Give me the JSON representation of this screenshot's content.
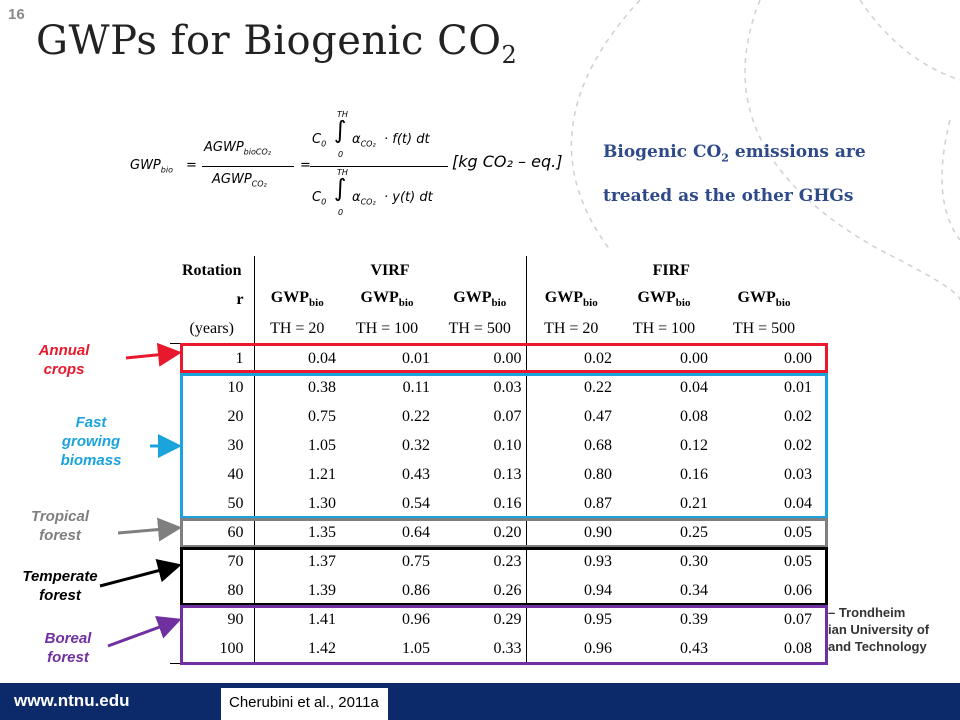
{
  "slide": {
    "number": "16",
    "title_main": "GWPs for Biogenic CO",
    "title_sub": "2"
  },
  "formula": {
    "lhs": "GWP",
    "lhs_sub": "bio",
    "equals": "=",
    "frac1_num": "AGWP",
    "frac1_num_sub": "bioCO₂",
    "frac1_den": "AGWP",
    "frac1_den_sub": "CO₂",
    "int_upper": "TH",
    "int_lower": "0",
    "frac2_num": "C₀ · ∫ α_CO₂ · f(t) dt",
    "frac2_num_c": "C",
    "frac2_num_c_sub": "0",
    "frac2_num_alpha": "α",
    "frac2_num_alpha_sub": "CO₂",
    "frac2_num_func": "· f(t) dt",
    "frac2_den_func": "· y(t) dt",
    "unit": "[kg CO₂ – eq.]"
  },
  "note": {
    "line1_main": "Biogenic CO",
    "line1_sub": "2",
    "line1_rest": " emissions are",
    "line2": "treated as the other GHGs"
  },
  "table": {
    "group_headers": {
      "rotation": "Rotation",
      "virf": "VIRF",
      "firf": "FIRF"
    },
    "sub_headers": {
      "r": "r",
      "gwp": "GWP",
      "gwp_sub": "bio"
    },
    "unit_headers": [
      "(years)",
      "TH = 20",
      "TH = 100",
      "TH = 500",
      "TH = 20",
      "TH = 100",
      "TH = 500"
    ],
    "rows": [
      [
        "1",
        "0.04",
        "0.01",
        "0.00",
        "0.02",
        "0.00",
        "0.00"
      ],
      [
        "10",
        "0.38",
        "0.11",
        "0.03",
        "0.22",
        "0.04",
        "0.01"
      ],
      [
        "20",
        "0.75",
        "0.22",
        "0.07",
        "0.47",
        "0.08",
        "0.02"
      ],
      [
        "30",
        "1.05",
        "0.32",
        "0.10",
        "0.68",
        "0.12",
        "0.02"
      ],
      [
        "40",
        "1.21",
        "0.43",
        "0.13",
        "0.80",
        "0.16",
        "0.03"
      ],
      [
        "50",
        "1.30",
        "0.54",
        "0.16",
        "0.87",
        "0.21",
        "0.04"
      ],
      [
        "60",
        "1.35",
        "0.64",
        "0.20",
        "0.90",
        "0.25",
        "0.05"
      ],
      [
        "70",
        "1.37",
        "0.75",
        "0.23",
        "0.93",
        "0.30",
        "0.05"
      ],
      [
        "80",
        "1.39",
        "0.86",
        "0.26",
        "0.94",
        "0.34",
        "0.06"
      ],
      [
        "90",
        "1.41",
        "0.96",
        "0.29",
        "0.95",
        "0.39",
        "0.07"
      ],
      [
        "100",
        "1.42",
        "1.05",
        "0.33",
        "0.96",
        "0.43",
        "0.08"
      ]
    ]
  },
  "annotations": [
    {
      "line1": "Annual",
      "line2": "crops",
      "color": "#e8192c"
    },
    {
      "line1": "Fast",
      "line2": "growing",
      "line3": "biomass",
      "color": "#1ba3dc"
    },
    {
      "line1": "Tropical",
      "line2": "forest",
      "color": "#7f7f7f"
    },
    {
      "line1": "Temperate",
      "line2": "forest",
      "color": "#000000"
    },
    {
      "line1": "Boreal",
      "line2": "forest",
      "color": "#7030a0"
    }
  ],
  "logo_fragment": {
    "line1": "– Trondheim",
    "line2": "ian University of",
    "line3": "and Technology"
  },
  "footer": {
    "url": "www.ntnu.edu",
    "citation": "Cherubini et al., 2011a",
    "bar_color": "#0c2a6a"
  }
}
